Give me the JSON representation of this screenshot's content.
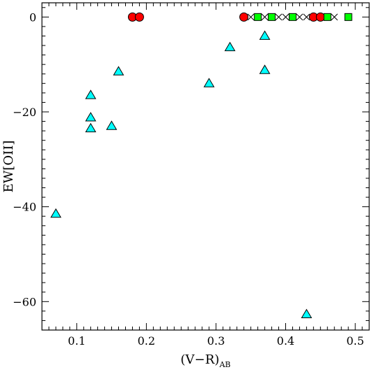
{
  "chart_data": {
    "type": "scatter",
    "title": "",
    "xlabel": "(V−R)",
    "xlabel_subscript": "AB",
    "ylabel": "EW[OII]",
    "xlim": [
      0.05,
      0.52
    ],
    "ylim": [
      -66,
      3
    ],
    "grid": false,
    "x_ticks": [
      0.1,
      0.2,
      0.3,
      0.4,
      0.5
    ],
    "x_tick_labels": [
      "0.1",
      "0.2",
      "0.3",
      "0.4",
      "0.5"
    ],
    "y_ticks": [
      0,
      -20,
      -40,
      -60
    ],
    "y_tick_labels": [
      "0",
      "−20",
      "−40",
      "−60"
    ],
    "series": [
      {
        "marker": "triangle",
        "color": "#00ffff",
        "points": [
          {
            "x": 0.07,
            "y": -41.5
          },
          {
            "x": 0.12,
            "y": -16.5
          },
          {
            "x": 0.12,
            "y": -21.2
          },
          {
            "x": 0.12,
            "y": -23.5
          },
          {
            "x": 0.15,
            "y": -23.0
          },
          {
            "x": 0.16,
            "y": -11.5
          },
          {
            "x": 0.29,
            "y": -14.0
          },
          {
            "x": 0.32,
            "y": -6.4
          },
          {
            "x": 0.37,
            "y": -4.0
          },
          {
            "x": 0.37,
            "y": -11.2
          },
          {
            "x": 0.43,
            "y": -62.7
          }
        ]
      },
      {
        "marker": "circle",
        "color": "#ff0000",
        "points": [
          {
            "x": 0.18,
            "y": 0
          },
          {
            "x": 0.19,
            "y": 0
          },
          {
            "x": 0.34,
            "y": 0
          },
          {
            "x": 0.44,
            "y": 0
          },
          {
            "x": 0.45,
            "y": 0
          }
        ]
      },
      {
        "marker": "square",
        "color": "#00ff00",
        "points": [
          {
            "x": 0.36,
            "y": 0
          },
          {
            "x": 0.38,
            "y": 0
          },
          {
            "x": 0.41,
            "y": 0
          },
          {
            "x": 0.46,
            "y": 0
          },
          {
            "x": 0.49,
            "y": 0
          }
        ]
      },
      {
        "marker": "cross",
        "color": "#000000",
        "points": [
          {
            "x": 0.35,
            "y": 0
          },
          {
            "x": 0.37,
            "y": 0
          },
          {
            "x": 0.39,
            "y": 0
          },
          {
            "x": 0.4,
            "y": 0
          },
          {
            "x": 0.42,
            "y": 0
          },
          {
            "x": 0.43,
            "y": 0
          },
          {
            "x": 0.47,
            "y": 0
          }
        ]
      }
    ]
  }
}
